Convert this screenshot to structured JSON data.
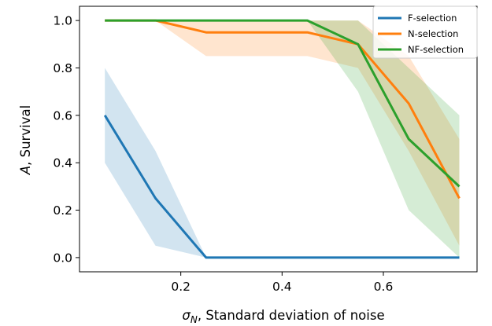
{
  "chart_data": {
    "type": "line",
    "title": "",
    "xlabel_symbol": "σ",
    "xlabel_symbol_sub": "N",
    "xlabel_rest": ", Standard deviation of noise",
    "ylabel_symbol": "A",
    "ylabel_rest": ", Survival",
    "x": [
      0.05,
      0.15,
      0.25,
      0.35,
      0.45,
      0.55,
      0.65,
      0.75
    ],
    "xlim": [
      0.0,
      0.785
    ],
    "ylim": [
      -0.06,
      1.06
    ],
    "xticks": [
      0.2,
      0.4,
      0.6
    ],
    "xtick_labels": [
      "0.2",
      "0.4",
      "0.6"
    ],
    "yticks": [
      0.0,
      0.2,
      0.4,
      0.6,
      0.8,
      1.0
    ],
    "ytick_labels": [
      "0.0",
      "0.2",
      "0.4",
      "0.6",
      "0.8",
      "1.0"
    ],
    "grid": false,
    "legend_position": "top-right",
    "series": [
      {
        "name": "F-selection",
        "color": "#1f77b4",
        "values": [
          0.6,
          0.25,
          0.0,
          0.0,
          0.0,
          0.0,
          0.0,
          0.0
        ],
        "band_low": [
          0.4,
          0.05,
          0.0,
          0.0,
          0.0,
          0.0,
          0.0,
          0.0
        ],
        "band_high": [
          0.8,
          0.45,
          0.0,
          0.0,
          0.0,
          0.0,
          0.0,
          0.0
        ]
      },
      {
        "name": "N-selection",
        "color": "#ff7f0e",
        "values": [
          1.0,
          1.0,
          0.95,
          0.95,
          0.95,
          0.9,
          0.65,
          0.25
        ],
        "band_low": [
          1.0,
          1.0,
          0.85,
          0.85,
          0.85,
          0.8,
          0.45,
          0.05
        ],
        "band_high": [
          1.0,
          1.0,
          1.0,
          1.0,
          1.0,
          1.0,
          0.85,
          0.5
        ]
      },
      {
        "name": "NF-selection",
        "color": "#2ca02c",
        "values": [
          1.0,
          1.0,
          1.0,
          1.0,
          1.0,
          0.9,
          0.5,
          0.3
        ],
        "band_low": [
          1.0,
          1.0,
          1.0,
          1.0,
          1.0,
          0.7,
          0.2,
          0.0
        ],
        "band_high": [
          1.0,
          1.0,
          1.0,
          1.0,
          1.0,
          1.0,
          0.8,
          0.6
        ]
      }
    ]
  }
}
